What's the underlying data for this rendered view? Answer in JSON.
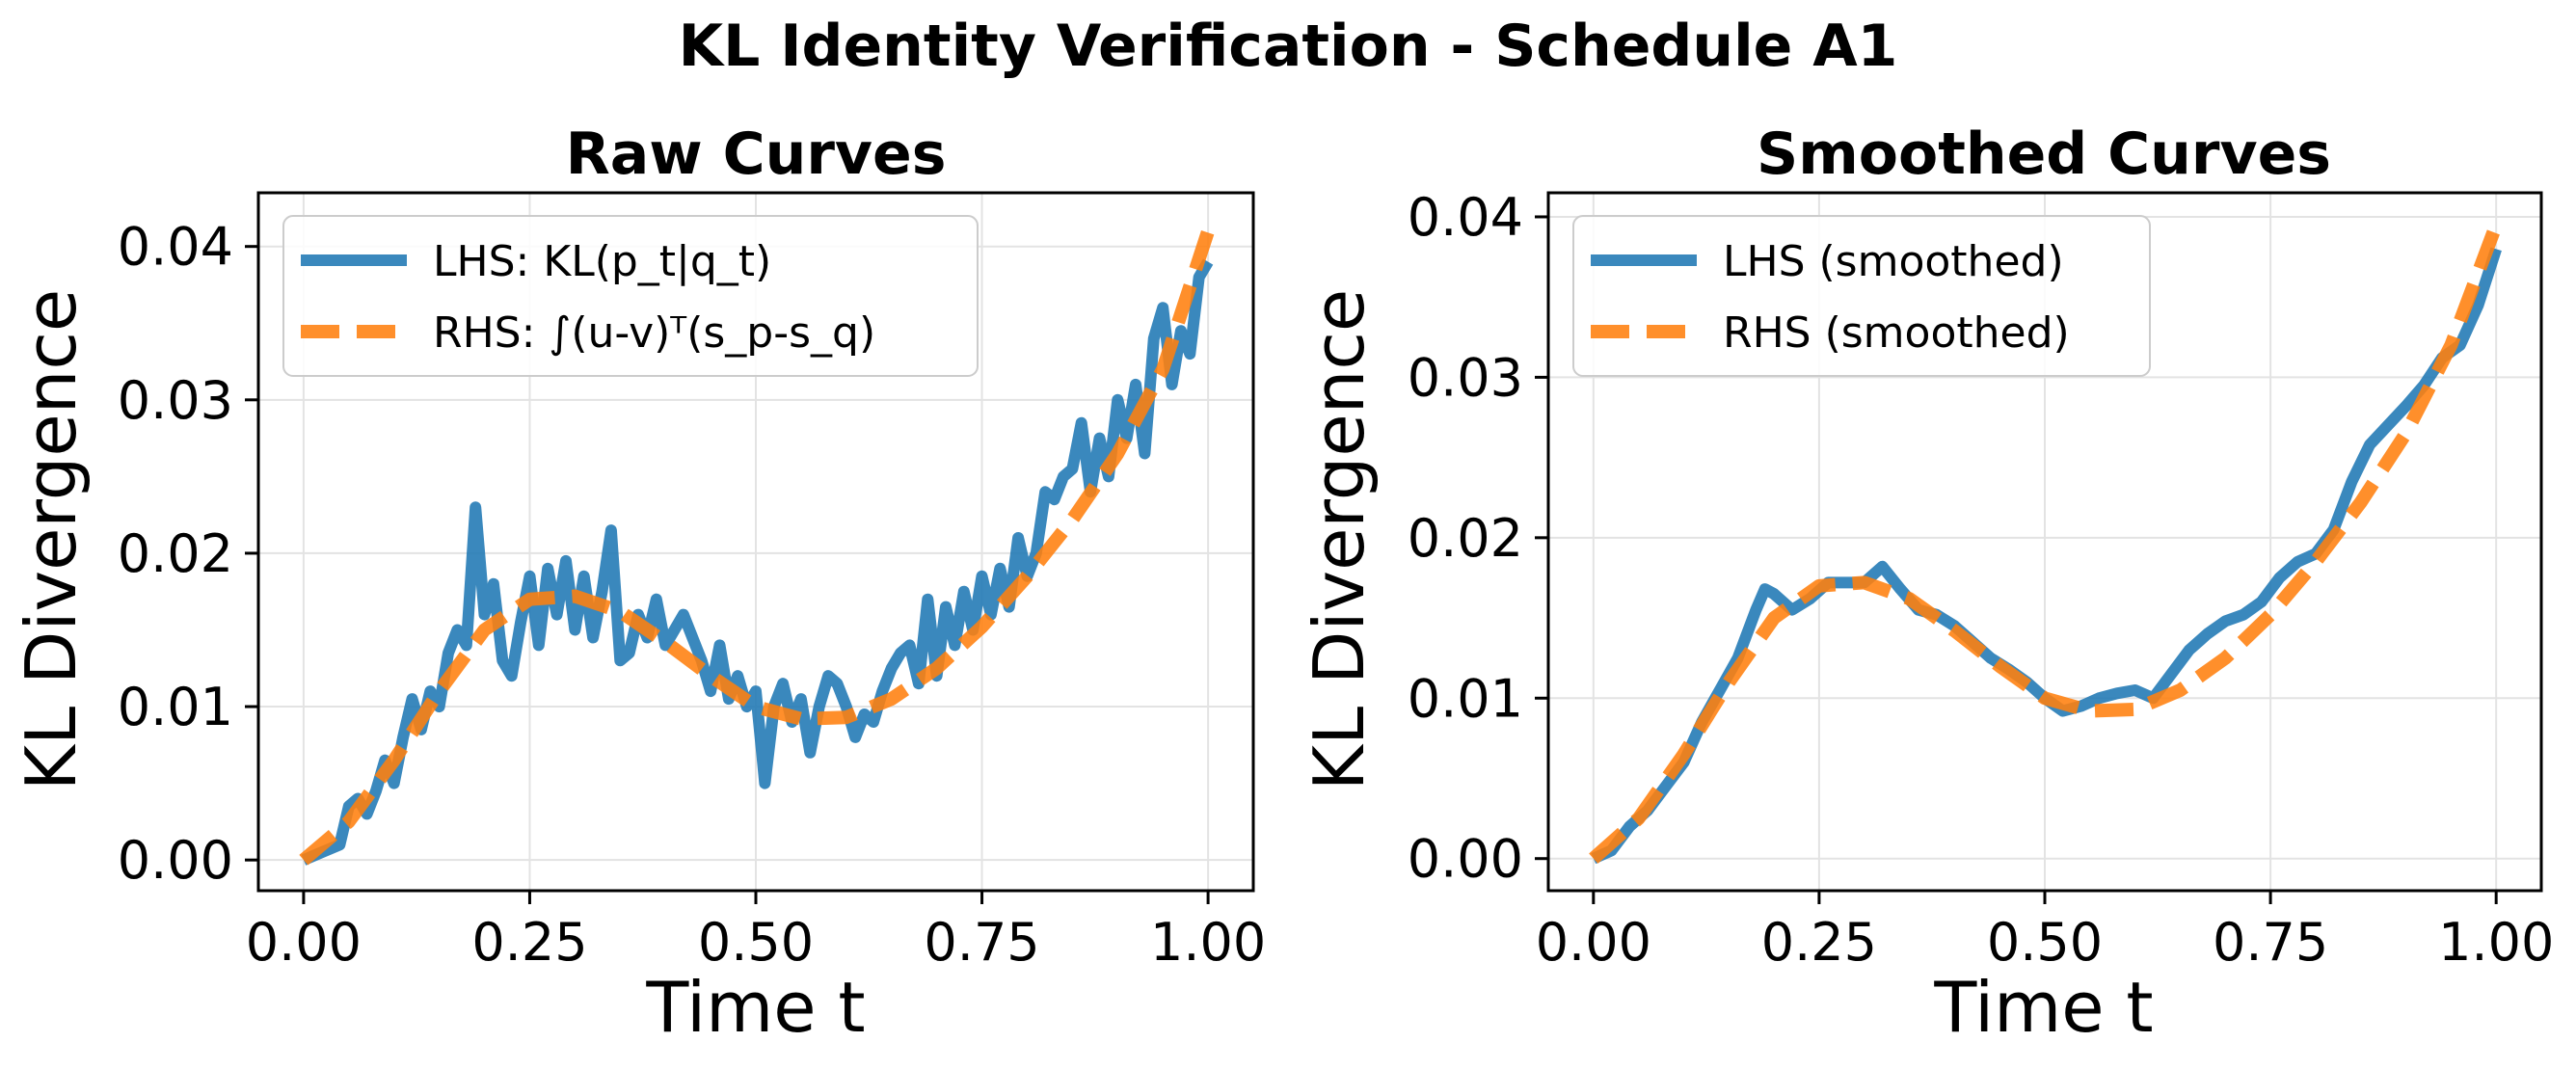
{
  "figure": {
    "title": "KL Identity Verification - Schedule A1"
  },
  "chart_data": [
    {
      "type": "line",
      "title": "Raw Curves",
      "xlabel": "Time t",
      "ylabel": "KL Divergence",
      "xlim": [
        -0.05,
        1.05
      ],
      "ylim": [
        -0.002,
        0.0435
      ],
      "xticks": [
        0.0,
        0.25,
        0.5,
        0.75,
        1.0
      ],
      "xtick_labels": [
        "0.00",
        "0.25",
        "0.50",
        "0.75",
        "1.00"
      ],
      "yticks": [
        0.0,
        0.01,
        0.02,
        0.03,
        0.04
      ],
      "ytick_labels": [
        "0.00",
        "0.01",
        "0.02",
        "0.03",
        "0.04"
      ],
      "grid": true,
      "legend_position": "top-left",
      "series": [
        {
          "name": "LHS: KL(p_t|q_t)",
          "color": "#1f77b4",
          "style": "solid",
          "x": [
            0.0,
            0.02,
            0.04,
            0.05,
            0.06,
            0.07,
            0.08,
            0.09,
            0.1,
            0.11,
            0.12,
            0.13,
            0.14,
            0.15,
            0.16,
            0.17,
            0.18,
            0.19,
            0.2,
            0.21,
            0.22,
            0.23,
            0.24,
            0.25,
            0.26,
            0.27,
            0.28,
            0.29,
            0.3,
            0.31,
            0.32,
            0.33,
            0.34,
            0.35,
            0.36,
            0.37,
            0.38,
            0.39,
            0.4,
            0.41,
            0.42,
            0.43,
            0.44,
            0.45,
            0.46,
            0.47,
            0.48,
            0.49,
            0.5,
            0.51,
            0.52,
            0.53,
            0.54,
            0.55,
            0.56,
            0.57,
            0.58,
            0.59,
            0.6,
            0.61,
            0.62,
            0.63,
            0.64,
            0.65,
            0.66,
            0.67,
            0.68,
            0.69,
            0.7,
            0.71,
            0.72,
            0.73,
            0.74,
            0.75,
            0.76,
            0.77,
            0.78,
            0.79,
            0.8,
            0.81,
            0.82,
            0.83,
            0.84,
            0.85,
            0.86,
            0.87,
            0.88,
            0.89,
            0.9,
            0.91,
            0.92,
            0.93,
            0.94,
            0.95,
            0.96,
            0.97,
            0.98,
            0.99,
            1.0
          ],
          "y": [
            0.0,
            0.0005,
            0.001,
            0.0035,
            0.004,
            0.003,
            0.0045,
            0.0065,
            0.005,
            0.008,
            0.0105,
            0.0085,
            0.011,
            0.01,
            0.0135,
            0.015,
            0.014,
            0.023,
            0.016,
            0.018,
            0.013,
            0.012,
            0.0155,
            0.0185,
            0.014,
            0.019,
            0.016,
            0.0195,
            0.015,
            0.0185,
            0.0145,
            0.0175,
            0.0215,
            0.013,
            0.0135,
            0.016,
            0.0145,
            0.017,
            0.014,
            0.015,
            0.016,
            0.0145,
            0.013,
            0.011,
            0.014,
            0.0105,
            0.012,
            0.01,
            0.011,
            0.005,
            0.01,
            0.0115,
            0.009,
            0.0105,
            0.007,
            0.01,
            0.012,
            0.0115,
            0.01,
            0.008,
            0.0095,
            0.009,
            0.011,
            0.0125,
            0.0135,
            0.014,
            0.0115,
            0.017,
            0.012,
            0.0165,
            0.014,
            0.0175,
            0.015,
            0.0185,
            0.016,
            0.019,
            0.0165,
            0.021,
            0.0185,
            0.02,
            0.024,
            0.0235,
            0.025,
            0.0255,
            0.0285,
            0.024,
            0.0275,
            0.025,
            0.03,
            0.0275,
            0.031,
            0.0265,
            0.034,
            0.036,
            0.031,
            0.0345,
            0.033,
            0.038,
            0.039
          ]
        },
        {
          "name": "RHS: ∫(u-v)ᵀ(s_p-s_q)",
          "color": "#ff7f0e",
          "style": "dashed",
          "x": [
            0.0,
            0.05,
            0.1,
            0.15,
            0.2,
            0.25,
            0.3,
            0.35,
            0.4,
            0.45,
            0.5,
            0.55,
            0.6,
            0.65,
            0.7,
            0.75,
            0.8,
            0.85,
            0.9,
            0.95,
            1.0
          ],
          "y": [
            0.0,
            0.0025,
            0.0065,
            0.011,
            0.015,
            0.017,
            0.0172,
            0.0162,
            0.0142,
            0.012,
            0.01,
            0.0092,
            0.0093,
            0.0105,
            0.0125,
            0.0152,
            0.0185,
            0.0222,
            0.0265,
            0.032,
            0.041
          ]
        }
      ]
    },
    {
      "type": "line",
      "title": "Smoothed Curves",
      "xlabel": "Time t",
      "ylabel": "KL Divergence",
      "xlim": [
        -0.05,
        1.05
      ],
      "ylim": [
        -0.002,
        0.0415
      ],
      "xticks": [
        0.0,
        0.25,
        0.5,
        0.75,
        1.0
      ],
      "xtick_labels": [
        "0.00",
        "0.25",
        "0.50",
        "0.75",
        "1.00"
      ],
      "yticks": [
        0.0,
        0.01,
        0.02,
        0.03,
        0.04
      ],
      "ytick_labels": [
        "0.00",
        "0.01",
        "0.02",
        "0.03",
        "0.04"
      ],
      "grid": true,
      "legend_position": "top-left",
      "series": [
        {
          "name": "LHS (smoothed)",
          "color": "#1f77b4",
          "style": "solid",
          "x": [
            0.0,
            0.02,
            0.04,
            0.06,
            0.08,
            0.1,
            0.12,
            0.14,
            0.16,
            0.18,
            0.19,
            0.2,
            0.22,
            0.24,
            0.26,
            0.28,
            0.3,
            0.32,
            0.34,
            0.36,
            0.38,
            0.4,
            0.42,
            0.44,
            0.46,
            0.48,
            0.5,
            0.52,
            0.54,
            0.56,
            0.58,
            0.6,
            0.62,
            0.64,
            0.66,
            0.68,
            0.7,
            0.72,
            0.74,
            0.76,
            0.78,
            0.8,
            0.82,
            0.84,
            0.86,
            0.88,
            0.9,
            0.92,
            0.94,
            0.96,
            0.98,
            1.0
          ],
          "y": [
            0.0,
            0.0005,
            0.002,
            0.003,
            0.0045,
            0.006,
            0.0085,
            0.0105,
            0.0125,
            0.0155,
            0.0168,
            0.0165,
            0.0155,
            0.0162,
            0.0172,
            0.0172,
            0.0172,
            0.0182,
            0.0168,
            0.0155,
            0.0152,
            0.0145,
            0.0135,
            0.0125,
            0.0118,
            0.011,
            0.01,
            0.0092,
            0.0095,
            0.01,
            0.0103,
            0.0105,
            0.01,
            0.0115,
            0.013,
            0.014,
            0.0148,
            0.0152,
            0.016,
            0.0175,
            0.0185,
            0.019,
            0.0205,
            0.0235,
            0.0258,
            0.027,
            0.0282,
            0.0295,
            0.0312,
            0.032,
            0.0345,
            0.038
          ]
        },
        {
          "name": "RHS (smoothed)",
          "color": "#ff7f0e",
          "style": "dashed",
          "x": [
            0.0,
            0.05,
            0.1,
            0.15,
            0.2,
            0.25,
            0.3,
            0.35,
            0.4,
            0.45,
            0.5,
            0.55,
            0.6,
            0.65,
            0.7,
            0.75,
            0.8,
            0.85,
            0.9,
            0.95,
            1.0
          ],
          "y": [
            0.0,
            0.0025,
            0.0065,
            0.011,
            0.015,
            0.017,
            0.0172,
            0.0162,
            0.0142,
            0.012,
            0.01,
            0.0092,
            0.0093,
            0.0105,
            0.0125,
            0.0152,
            0.0185,
            0.0222,
            0.0265,
            0.032,
            0.0395
          ]
        }
      ]
    }
  ]
}
